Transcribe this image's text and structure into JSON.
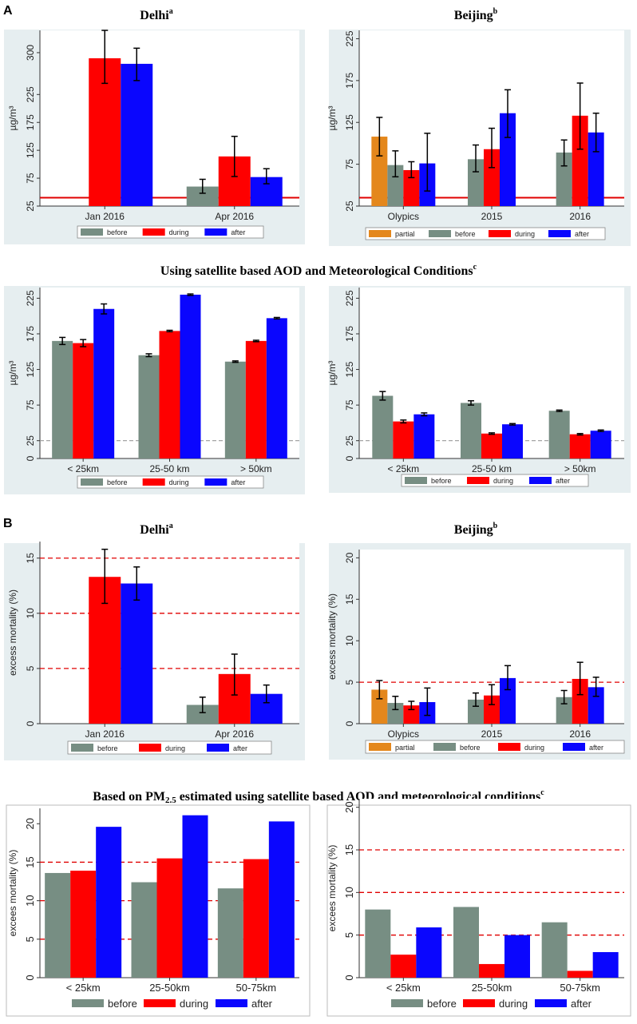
{
  "colors": {
    "partial": "#E4871C",
    "before": "#778E83",
    "during": "#FE0000",
    "after": "#0A06FE",
    "panel_bg": "#E6EEF0",
    "refline": "#E00000",
    "dashref": "#999999"
  },
  "panel_labels": {
    "a": "A",
    "b": "B"
  },
  "titles": {
    "delhi_a": "Delhi",
    "delhi_a_sup": "a",
    "beijing_a": "Beijing",
    "beijing_a_sup": "b",
    "satellite_a": "Using satellite based AOD and Meteorological Conditions",
    "satellite_a_sup": "c",
    "delhi_b": "Delhi",
    "delhi_b_sup": "a",
    "beijing_b": "Beijing",
    "beijing_b_sup": "b",
    "satellite_b_pre": "Based on PM",
    "satellite_b_sub": "2.5",
    "satellite_b_post": " estimated using satellite based AOD and meteorological conditions",
    "satellite_b_sup": "c"
  },
  "chart_data": [
    {
      "id": "a1",
      "type": "bar",
      "title": "Delhi",
      "ylabel": "µg/m³",
      "ylim": [
        25,
        340
      ],
      "yticks": [
        25,
        75,
        125,
        175,
        225,
        300
      ],
      "categories": [
        "Jan 2016",
        "Apr 2016"
      ],
      "refline": {
        "value": 40,
        "style": "solid"
      },
      "legend": [
        "before",
        "during",
        "after"
      ],
      "groups": [
        {
          "bars": [
            {
              "s": "during",
              "v": 290,
              "lo": 245,
              "hi": 340
            },
            {
              "s": "after",
              "v": 280,
              "lo": 250,
              "hi": 308
            }
          ]
        },
        {
          "bars": [
            {
              "s": "before",
              "v": 60,
              "lo": 48,
              "hi": 73
            },
            {
              "s": "during",
              "v": 114,
              "lo": 78,
              "hi": 150
            },
            {
              "s": "after",
              "v": 77,
              "lo": 65,
              "hi": 92
            }
          ]
        }
      ]
    },
    {
      "id": "a2",
      "type": "bar",
      "title": "Beijing",
      "ylabel": "µg/m³",
      "ylim": [
        25,
        235
      ],
      "yticks": [
        25,
        75,
        125,
        175,
        225
      ],
      "categories": [
        "Olypics",
        "2015",
        "2016"
      ],
      "refline": {
        "value": 35,
        "style": "solid"
      },
      "legend": [
        "partial",
        "before",
        "during",
        "after"
      ],
      "groups": [
        {
          "bars": [
            {
              "s": "partial",
              "v": 108,
              "lo": 85,
              "hi": 131
            },
            {
              "s": "before",
              "v": 74,
              "lo": 60,
              "hi": 91
            },
            {
              "s": "during",
              "v": 68,
              "lo": 59,
              "hi": 78
            },
            {
              "s": "after",
              "v": 76,
              "lo": 43,
              "hi": 112
            }
          ]
        },
        {
          "bars": [
            {
              "s": "before",
              "v": 81,
              "lo": 66,
              "hi": 98
            },
            {
              "s": "during",
              "v": 93,
              "lo": 71,
              "hi": 118
            },
            {
              "s": "after",
              "v": 136,
              "lo": 107,
              "hi": 164
            }
          ]
        },
        {
          "bars": [
            {
              "s": "before",
              "v": 89,
              "lo": 73,
              "hi": 104
            },
            {
              "s": "during",
              "v": 133,
              "lo": 93,
              "hi": 172
            },
            {
              "s": "after",
              "v": 113,
              "lo": 90,
              "hi": 136
            }
          ]
        }
      ]
    },
    {
      "id": "a3",
      "type": "bar",
      "title": "Using satellite based AOD and Meteorological Conditions (Delhi)",
      "ylabel": "µg/m³",
      "ylim": [
        0,
        240
      ],
      "yticks": [
        0,
        25,
        75,
        125,
        175,
        225
      ],
      "categories": [
        "< 25km",
        "25-50 km",
        "> 50km"
      ],
      "refline": {
        "value": 25,
        "style": "dashed-gray"
      },
      "legend": [
        "before",
        "during",
        "after"
      ],
      "groups": [
        {
          "bars": [
            {
              "s": "before",
              "v": 165,
              "lo": 160,
              "hi": 170
            },
            {
              "s": "during",
              "v": 162,
              "lo": 157,
              "hi": 167
            },
            {
              "s": "after",
              "v": 210,
              "lo": 203,
              "hi": 217
            }
          ]
        },
        {
          "bars": [
            {
              "s": "before",
              "v": 145,
              "lo": 143,
              "hi": 147
            },
            {
              "s": "during",
              "v": 179,
              "lo": 178,
              "hi": 180
            },
            {
              "s": "after",
              "v": 230,
              "lo": 229,
              "hi": 231
            }
          ]
        },
        {
          "bars": [
            {
              "s": "before",
              "v": 136,
              "lo": 135,
              "hi": 137
            },
            {
              "s": "during",
              "v": 165,
              "lo": 164,
              "hi": 166
            },
            {
              "s": "after",
              "v": 197,
              "lo": 196,
              "hi": 198
            }
          ]
        }
      ]
    },
    {
      "id": "a4",
      "type": "bar",
      "title": "Using satellite based AOD and Meteorological Conditions (Beijing)",
      "ylabel": "µg/m³",
      "ylim": [
        0,
        240
      ],
      "yticks": [
        0,
        25,
        75,
        125,
        175,
        225
      ],
      "categories": [
        "< 25km",
        "25-50 km",
        "> 50km"
      ],
      "refline": {
        "value": 25,
        "style": "dashed-gray"
      },
      "legend": [
        "before",
        "during",
        "after"
      ],
      "groups": [
        {
          "bars": [
            {
              "s": "before",
              "v": 88,
              "lo": 82,
              "hi": 94
            },
            {
              "s": "during",
              "v": 52,
              "lo": 50,
              "hi": 54
            },
            {
              "s": "after",
              "v": 62,
              "lo": 60,
              "hi": 64
            }
          ]
        },
        {
          "bars": [
            {
              "s": "before",
              "v": 78,
              "lo": 75,
              "hi": 81
            },
            {
              "s": "during",
              "v": 35,
              "lo": 34,
              "hi": 36
            },
            {
              "s": "after",
              "v": 48,
              "lo": 47,
              "hi": 49
            }
          ]
        },
        {
          "bars": [
            {
              "s": "before",
              "v": 67,
              "lo": 66,
              "hi": 68
            },
            {
              "s": "during",
              "v": 34,
              "lo": 33,
              "hi": 35
            },
            {
              "s": "after",
              "v": 39,
              "lo": 38,
              "hi": 40
            }
          ]
        }
      ]
    },
    {
      "id": "b1",
      "type": "bar",
      "title": "Delhi",
      "ylabel": "excess mortality (%)",
      "ylim": [
        0,
        16.5
      ],
      "yticks": [
        0,
        5,
        10,
        15
      ],
      "categories": [
        "Jan 2016",
        "Apr 2016"
      ],
      "reflines": [
        5,
        10,
        15
      ],
      "legend": [
        "before",
        "during",
        "after"
      ],
      "groups": [
        {
          "bars": [
            {
              "s": "during",
              "v": 13.3,
              "lo": 10.9,
              "hi": 15.8
            },
            {
              "s": "after",
              "v": 12.7,
              "lo": 11.2,
              "hi": 14.2
            }
          ]
        },
        {
          "bars": [
            {
              "s": "before",
              "v": 1.7,
              "lo": 1.0,
              "hi": 2.4
            },
            {
              "s": "during",
              "v": 4.5,
              "lo": 2.6,
              "hi": 6.3
            },
            {
              "s": "after",
              "v": 2.7,
              "lo": 1.9,
              "hi": 3.5
            }
          ]
        }
      ]
    },
    {
      "id": "b2",
      "type": "bar",
      "title": "Beijing",
      "ylabel": "excess mortality (%)",
      "ylim": [
        0,
        21
      ],
      "yticks": [
        0,
        5,
        10,
        15,
        20
      ],
      "categories": [
        "Olypics",
        "2015",
        "2016"
      ],
      "reflines": [
        5
      ],
      "legend": [
        "partial",
        "before",
        "during",
        "after"
      ],
      "groups": [
        {
          "bars": [
            {
              "s": "partial",
              "v": 4.1,
              "lo": 3.0,
              "hi": 5.2
            },
            {
              "s": "before",
              "v": 2.5,
              "lo": 1.7,
              "hi": 3.3
            },
            {
              "s": "during",
              "v": 2.2,
              "lo": 1.7,
              "hi": 2.7
            },
            {
              "s": "after",
              "v": 2.6,
              "lo": 1.0,
              "hi": 4.3
            }
          ]
        },
        {
          "bars": [
            {
              "s": "before",
              "v": 2.9,
              "lo": 2.1,
              "hi": 3.7
            },
            {
              "s": "during",
              "v": 3.4,
              "lo": 2.3,
              "hi": 4.7
            },
            {
              "s": "after",
              "v": 5.5,
              "lo": 4.1,
              "hi": 7.0
            }
          ]
        },
        {
          "bars": [
            {
              "s": "before",
              "v": 3.2,
              "lo": 2.4,
              "hi": 4.0
            },
            {
              "s": "during",
              "v": 5.4,
              "lo": 3.5,
              "hi": 7.4
            },
            {
              "s": "after",
              "v": 4.4,
              "lo": 3.3,
              "hi": 5.6
            }
          ]
        }
      ]
    },
    {
      "id": "b3",
      "type": "bar",
      "title": "Based on PM2.5 estimated using satellite based AOD and meteorological conditions (Delhi)",
      "ylabel": "excees mortality (%)",
      "ylim": [
        0,
        22
      ],
      "yticks": [
        0,
        5,
        10,
        15,
        20
      ],
      "categories": [
        "< 25km",
        "25-50km",
        "50-75km"
      ],
      "reflines": [
        5,
        10,
        15
      ],
      "legend": [
        "before",
        "during",
        "after"
      ],
      "groups": [
        {
          "bars": [
            {
              "s": "before",
              "v": 13.6
            },
            {
              "s": "during",
              "v": 13.9
            },
            {
              "s": "after",
              "v": 19.6
            }
          ]
        },
        {
          "bars": [
            {
              "s": "before",
              "v": 12.4
            },
            {
              "s": "during",
              "v": 15.5
            },
            {
              "s": "after",
              "v": 21.1
            }
          ]
        },
        {
          "bars": [
            {
              "s": "before",
              "v": 11.6
            },
            {
              "s": "during",
              "v": 15.4
            },
            {
              "s": "after",
              "v": 20.3
            }
          ]
        }
      ]
    },
    {
      "id": "b4",
      "type": "bar",
      "title": "Based on PM2.5 estimated using satellite based AOD and meteorological conditions (Beijing)",
      "ylabel": "excees mortality (%)",
      "ylim": [
        0,
        21
      ],
      "yticks": [
        0,
        5,
        10,
        15,
        20
      ],
      "categories": [
        "< 25km",
        "25-50km",
        "50-75km"
      ],
      "reflines": [
        5,
        10,
        15
      ],
      "legend": [
        "before",
        "during",
        "after"
      ],
      "groups": [
        {
          "bars": [
            {
              "s": "before",
              "v": 8.0
            },
            {
              "s": "during",
              "v": 2.7
            },
            {
              "s": "after",
              "v": 5.9
            }
          ]
        },
        {
          "bars": [
            {
              "s": "before",
              "v": 8.3
            },
            {
              "s": "during",
              "v": 1.6
            },
            {
              "s": "after",
              "v": 5.0
            }
          ]
        },
        {
          "bars": [
            {
              "s": "before",
              "v": 6.5
            },
            {
              "s": "during",
              "v": 0.8
            },
            {
              "s": "after",
              "v": 3.0
            }
          ]
        }
      ]
    }
  ]
}
